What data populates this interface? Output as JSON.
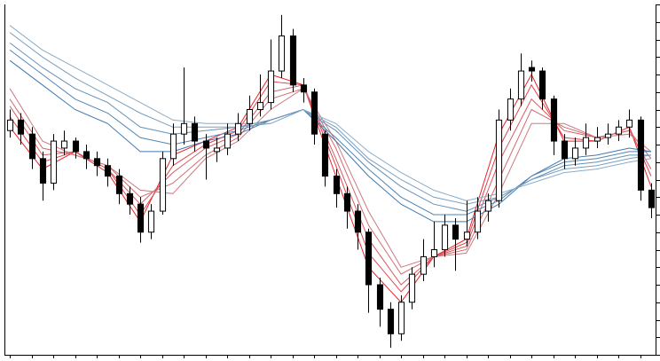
{
  "chart_data": {
    "type": "candlestick",
    "xlim": [
      -0.5,
      59.5
    ],
    "ylim": [
      0,
      100
    ],
    "xticks": [
      0,
      2,
      4,
      6,
      8,
      10,
      12,
      14,
      16,
      18,
      20,
      22,
      24,
      26,
      28,
      30,
      32,
      34,
      36,
      38,
      40,
      42,
      44,
      46,
      48,
      50,
      52,
      54,
      56,
      58
    ],
    "yticks": [
      0,
      5,
      10,
      15,
      20,
      25,
      30,
      35,
      40,
      45,
      50,
      55,
      60,
      65,
      70,
      75,
      80,
      85,
      90,
      95,
      100
    ],
    "up_color": "#ffffff",
    "down_color": "#000000",
    "open": [
      64,
      67,
      63,
      56,
      49,
      59,
      61,
      58,
      56,
      54,
      51,
      46,
      43,
      35,
      41,
      56,
      63,
      66,
      61,
      58,
      59,
      63,
      66,
      70,
      72,
      81,
      91,
      77,
      75,
      63,
      51,
      46,
      41,
      35,
      20,
      13,
      6,
      15,
      23,
      28,
      30,
      37,
      33,
      35,
      41,
      44,
      67,
      73,
      82,
      81,
      73,
      61,
      56,
      59,
      61,
      62,
      63,
      65,
      67,
      47
    ],
    "high": [
      70,
      69,
      65,
      58,
      63,
      64,
      62,
      60,
      58,
      56,
      53,
      48,
      45,
      43,
      58,
      66,
      82,
      68,
      63,
      62,
      66,
      69,
      74,
      80,
      90,
      97,
      93,
      79,
      76,
      64,
      53,
      48,
      43,
      36,
      22,
      15,
      17,
      25,
      33,
      38,
      40,
      39,
      44,
      45,
      46,
      70,
      76,
      86,
      84,
      82,
      74,
      63,
      62,
      66,
      65,
      66,
      67,
      70,
      68,
      49
    ],
    "low": [
      62,
      60,
      53,
      44,
      47,
      57,
      56,
      53,
      51,
      48,
      43,
      40,
      32,
      33,
      40,
      54,
      60,
      58,
      50,
      55,
      57,
      61,
      64,
      68,
      70,
      79,
      75,
      72,
      60,
      48,
      42,
      36,
      30,
      12,
      8,
      2,
      4,
      13,
      21,
      25,
      28,
      24,
      31,
      33,
      38,
      42,
      64,
      71,
      78,
      70,
      57,
      53,
      54,
      57,
      59,
      60,
      61,
      62,
      44,
      39
    ],
    "close": [
      67,
      63,
      56,
      49,
      61,
      61,
      58,
      56,
      54,
      51,
      46,
      43,
      35,
      41,
      56,
      63,
      66,
      61,
      59,
      59,
      63,
      66,
      70,
      72,
      81,
      91,
      77,
      75,
      63,
      51,
      46,
      41,
      35,
      20,
      13,
      6,
      15,
      23,
      28,
      30,
      37,
      33,
      35,
      41,
      44,
      67,
      73,
      81,
      81,
      73,
      61,
      56,
      59,
      62,
      62,
      63,
      65,
      67,
      47,
      42
    ],
    "series": [
      {
        "color": "#e8262e",
        "x": [
          0,
          3,
          6,
          9,
          12,
          15,
          18,
          21,
          24,
          27,
          30,
          33,
          36,
          39,
          42,
          45,
          48,
          51,
          54,
          57,
          59
        ],
        "values": [
          65,
          53,
          58,
          52,
          38,
          57,
          61,
          65,
          80,
          77,
          51,
          25,
          15,
          28,
          33,
          63,
          80,
          61,
          61,
          65,
          48
        ]
      },
      {
        "color": "#e0444c",
        "x": [
          0,
          3,
          6,
          9,
          12,
          15,
          18,
          21,
          24,
          27,
          30,
          33,
          36,
          39,
          42,
          45,
          48,
          51,
          54,
          57,
          59
        ],
        "values": [
          68,
          55,
          58,
          53,
          40,
          54,
          60,
          64,
          78,
          77,
          54,
          29,
          18,
          28,
          32,
          59,
          77,
          62,
          61,
          65,
          51
        ]
      },
      {
        "color": "#d9595f",
        "x": [
          0,
          3,
          6,
          9,
          12,
          15,
          18,
          21,
          24,
          27,
          30,
          33,
          36,
          39,
          42,
          45,
          48,
          51,
          54,
          57,
          59
        ],
        "values": [
          71,
          57,
          58,
          53,
          43,
          52,
          59,
          63,
          75,
          77,
          56,
          33,
          20,
          28,
          31,
          55,
          73,
          64,
          62,
          64,
          53
        ]
      },
      {
        "color": "#d36a70",
        "x": [
          0,
          3,
          6,
          9,
          12,
          15,
          18,
          21,
          24,
          27,
          30,
          33,
          36,
          39,
          42,
          45,
          48,
          51,
          54,
          57,
          59
        ],
        "values": [
          73,
          59,
          57,
          54,
          45,
          49,
          57,
          62,
          73,
          76,
          59,
          37,
          23,
          28,
          30,
          50,
          70,
          65,
          62,
          64,
          56
        ]
      },
      {
        "color": "#cc7a80",
        "x": [
          0,
          3,
          6,
          9,
          12,
          15,
          18,
          21,
          24,
          27,
          30,
          33,
          36,
          39,
          42,
          45,
          48,
          51,
          54,
          57,
          59
        ],
        "values": [
          76,
          61,
          57,
          54,
          47,
          46,
          56,
          61,
          70,
          76,
          61,
          41,
          25,
          28,
          29,
          46,
          66,
          66,
          62,
          63,
          58
        ]
      },
      {
        "color": "#3f78ad",
        "x": [
          0,
          3,
          6,
          9,
          12,
          15,
          18,
          21,
          24,
          27,
          30,
          33,
          36,
          39,
          42,
          45,
          48,
          51,
          54,
          57,
          59
        ],
        "values": [
          84,
          77,
          70,
          66,
          58,
          58,
          61,
          63,
          67,
          70,
          61,
          51,
          43,
          38,
          38,
          43,
          51,
          56,
          57,
          59,
          58
        ]
      },
      {
        "color": "#5285b3",
        "x": [
          0,
          3,
          6,
          9,
          12,
          15,
          18,
          21,
          24,
          27,
          30,
          33,
          36,
          39,
          42,
          45,
          48,
          51,
          54,
          57,
          59
        ],
        "values": [
          87,
          80,
          73,
          69,
          62,
          60,
          62,
          64,
          67,
          70,
          62,
          53,
          45,
          40,
          40,
          44,
          51,
          55,
          56,
          58,
          58
        ]
      },
      {
        "color": "#6592ba",
        "x": [
          0,
          3,
          6,
          9,
          12,
          15,
          18,
          21,
          24,
          27,
          30,
          33,
          36,
          39,
          42,
          45,
          48,
          51,
          54,
          57,
          59
        ],
        "values": [
          89,
          82,
          76,
          72,
          65,
          63,
          64,
          65,
          67,
          70,
          64,
          55,
          48,
          43,
          41,
          45,
          50,
          54,
          55,
          57,
          57
        ]
      },
      {
        "color": "#789fc1",
        "x": [
          0,
          3,
          6,
          9,
          12,
          15,
          18,
          21,
          24,
          27,
          30,
          33,
          36,
          39,
          42,
          45,
          48,
          51,
          54,
          57,
          59
        ],
        "values": [
          92,
          85,
          79,
          74,
          69,
          65,
          65,
          65,
          66,
          70,
          65,
          56,
          50,
          45,
          43,
          45,
          50,
          53,
          54,
          56,
          57
        ]
      },
      {
        "color": "#8aacc8",
        "x": [
          0,
          3,
          6,
          9,
          12,
          15,
          18,
          21,
          24,
          27,
          30,
          33,
          36,
          39,
          42,
          45,
          48,
          51,
          54,
          57,
          59
        ],
        "values": [
          94,
          87,
          82,
          77,
          72,
          67,
          66,
          66,
          66,
          70,
          66,
          58,
          52,
          47,
          44,
          46,
          49,
          52,
          53,
          55,
          56
        ]
      }
    ]
  }
}
